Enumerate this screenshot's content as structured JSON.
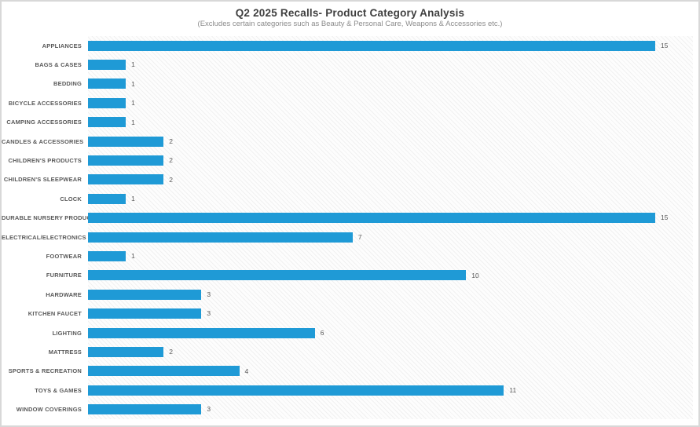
{
  "header": {
    "title": "Q2 2025 Recalls- Product Category Analysis",
    "subtitle": "(Excludes certain categories such as Beauty & Personal Care, Weapons & Accessories etc.)"
  },
  "colors": {
    "bar": "#1f9ad6",
    "category_label": "#595959",
    "value_label": "#595959",
    "title": "#3f3f3f",
    "subtitle": "#8c8c8c",
    "frame_border": "#d8d8d8",
    "plot_hatch": "#ededed"
  },
  "chart_data": {
    "type": "bar",
    "orientation": "horizontal",
    "title": "Q2 2025 Recalls- Product Category Analysis",
    "subtitle": "(Excludes certain categories such as Beauty & Personal Care, Weapons & Accessories etc.)",
    "categories": [
      "APPLIANCES",
      "BAGS & CASES",
      "BEDDING",
      "BICYCLE ACCESSORIES",
      "CAMPING ACCESSORIES",
      "CANDLES & ACCESSORIES",
      "CHILDREN'S PRODUCTS",
      "CHILDREN'S SLEEPWEAR",
      "CLOCK",
      "DURABLE NURSERY PRODUCT",
      "ELECTRICAL/ELECTRONICS",
      "FOOTWEAR",
      "FURNITURE",
      "HARDWARE",
      "KITCHEN FAUCET",
      "LIGHTING",
      "MATTRESS",
      "SPORTS & RECREATION",
      "TOYS & GAMES",
      "WINDOW COVERINGS"
    ],
    "values": [
      15,
      1,
      1,
      1,
      1,
      2,
      2,
      2,
      1,
      15,
      7,
      1,
      10,
      3,
      3,
      6,
      2,
      4,
      11,
      3
    ],
    "xlabel": "",
    "ylabel": "",
    "xlim": [
      0,
      16
    ],
    "grid": false,
    "legend": false,
    "data_labels": true
  }
}
